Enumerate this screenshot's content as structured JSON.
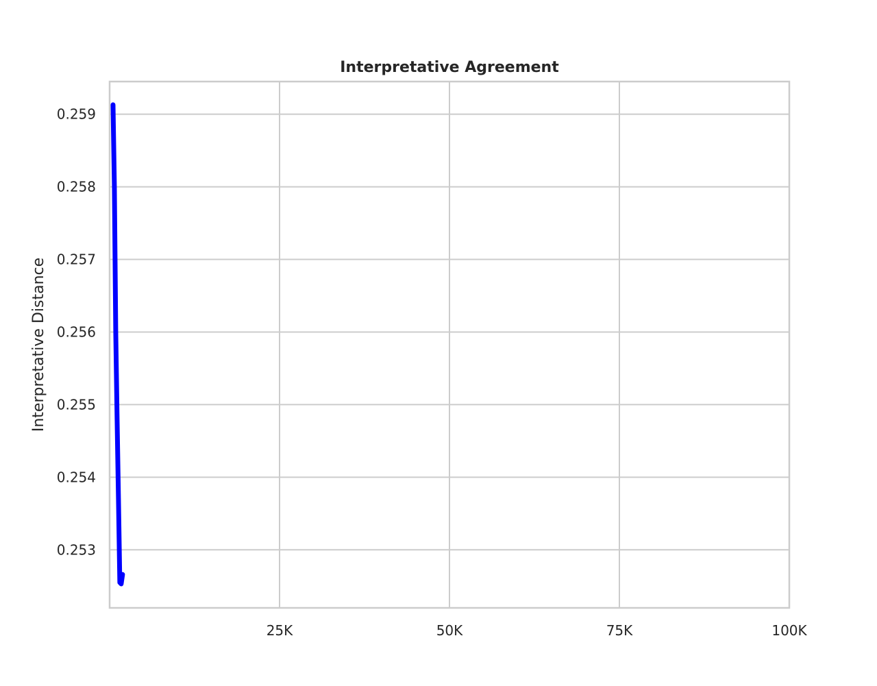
{
  "chart_data": {
    "type": "line",
    "title": "Interpretative Agreement",
    "xlabel": "",
    "ylabel": "Interpretative Distance",
    "xlim": [
      0,
      100000
    ],
    "ylim": [
      0.2522,
      0.25945
    ],
    "grid": true,
    "x_ticks": [
      {
        "value": 25000,
        "label": "25K"
      },
      {
        "value": 50000,
        "label": "50K"
      },
      {
        "value": 75000,
        "label": "75K"
      },
      {
        "value": 100000,
        "label": "100K"
      }
    ],
    "y_ticks": [
      {
        "value": 0.253,
        "label": "0.253"
      },
      {
        "value": 0.254,
        "label": "0.254"
      },
      {
        "value": 0.255,
        "label": "0.255"
      },
      {
        "value": 0.256,
        "label": "0.256"
      },
      {
        "value": 0.257,
        "label": "0.257"
      },
      {
        "value": 0.258,
        "label": "0.258"
      },
      {
        "value": 0.259,
        "label": "0.259"
      }
    ],
    "series": [
      {
        "color": "#0000ff",
        "x": [
          500,
          700,
          900,
          1100,
          1300,
          1500,
          1700,
          1900
        ],
        "y": [
          0.25913,
          0.258,
          0.256,
          0.2548,
          0.2537,
          0.25255,
          0.25253,
          0.25266
        ]
      }
    ]
  }
}
